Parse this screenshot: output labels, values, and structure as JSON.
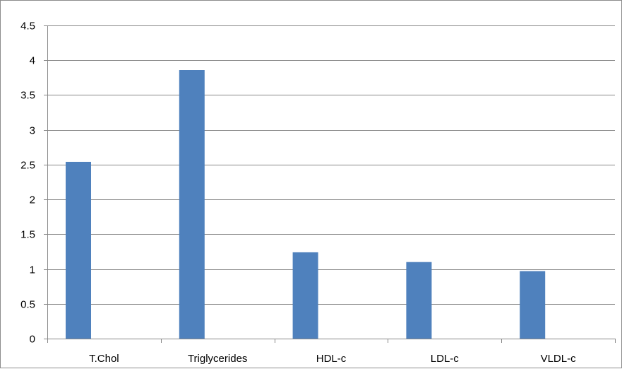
{
  "chart_data": {
    "type": "bar",
    "categories": [
      "T.Chol",
      "Triglycerides",
      "HDL-c",
      "LDL-c",
      "VLDL-c"
    ],
    "values": [
      2.54,
      3.86,
      1.24,
      1.1,
      0.97
    ],
    "title": "",
    "xlabel": "",
    "ylabel": "",
    "ylim": [
      0,
      4.5
    ],
    "yticks": [
      "0",
      "0.5",
      "1",
      "1.5",
      "2",
      "2.5",
      "3",
      "3.5",
      "4",
      "4.5"
    ],
    "ytick_values": [
      0,
      0.5,
      1,
      1.5,
      2,
      2.5,
      3,
      3.5,
      4,
      4.5
    ],
    "grid": true,
    "legend": "none",
    "colors": {
      "bar": "#4f81bd",
      "grid": "#878787",
      "axis": "#878787",
      "text": "#000000"
    }
  }
}
